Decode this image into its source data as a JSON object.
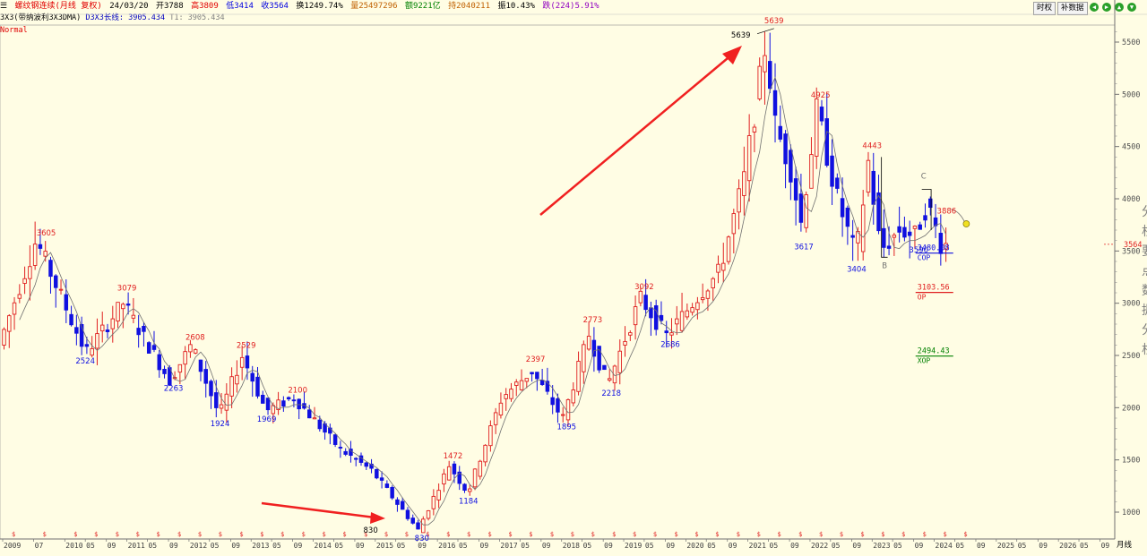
{
  "header": {
    "title": "螺纹钢连续(月线 复权)",
    "date": "24/03/20",
    "open": "开3788",
    "high": "高3809",
    "low": "低3414",
    "close": "收3564",
    "turnover": "换1249.74%",
    "volume": "量25497296",
    "amount": "额9221亿",
    "position": "持2040211",
    "amplitude": "振10.43%",
    "change": "跌(224)5.91%",
    "btn_time": "时权",
    "btn_data": "补数据",
    "icon_small1": "王",
    "icon_small2": "田"
  },
  "indicator": {
    "name": "3X3(带纳波利3X3DMA)",
    "d3x3": "D3X3长线: 3905.434",
    "t1": "T1: 3905.434",
    "mode": "Normal"
  },
  "colors": {
    "up": "#e02020",
    "down": "#1010e0",
    "ma": "#707070",
    "grid": "#cfcfcf"
  },
  "side_text": [
    "分",
    "析",
    "要",
    "点",
    "数",
    "据",
    "分",
    "析"
  ],
  "chart_data": {
    "type": "candlestick",
    "ylim": [
      800,
      5700
    ],
    "y_ticks": [
      1000,
      1500,
      2000,
      2500,
      3000,
      3500,
      4000,
      4500,
      5000,
      5500
    ],
    "current_price_label": "3564",
    "x_labels": [
      {
        "t": "2009",
        "x": 2009.0
      },
      {
        "t": "07",
        "x": 2009.5
      },
      {
        "t": "2010",
        "x": 2010.0
      },
      {
        "t": "05",
        "x": 2010.33
      },
      {
        "t": "09",
        "x": 2010.67
      },
      {
        "t": "2011",
        "x": 2011.0
      },
      {
        "t": "05",
        "x": 2011.33
      },
      {
        "t": "09",
        "x": 2011.67
      },
      {
        "t": "2012",
        "x": 2012.0
      },
      {
        "t": "05",
        "x": 2012.33
      },
      {
        "t": "09",
        "x": 2012.67
      },
      {
        "t": "2013",
        "x": 2013.0
      },
      {
        "t": "05",
        "x": 2013.33
      },
      {
        "t": "09",
        "x": 2013.67
      },
      {
        "t": "2014",
        "x": 2014.0
      },
      {
        "t": "05",
        "x": 2014.33
      },
      {
        "t": "09",
        "x": 2014.67
      },
      {
        "t": "2015",
        "x": 2015.0
      },
      {
        "t": "05",
        "x": 2015.33
      },
      {
        "t": "09",
        "x": 2015.67
      },
      {
        "t": "2016",
        "x": 2016.0
      },
      {
        "t": "05",
        "x": 2016.33
      },
      {
        "t": "09",
        "x": 2016.67
      },
      {
        "t": "2017",
        "x": 2017.0
      },
      {
        "t": "05",
        "x": 2017.33
      },
      {
        "t": "09",
        "x": 2017.67
      },
      {
        "t": "2018",
        "x": 2018.0
      },
      {
        "t": "05",
        "x": 2018.33
      },
      {
        "t": "09",
        "x": 2018.67
      },
      {
        "t": "2019",
        "x": 2019.0
      },
      {
        "t": "05",
        "x": 2019.33
      },
      {
        "t": "09",
        "x": 2019.67
      },
      {
        "t": "2020",
        "x": 2020.0
      },
      {
        "t": "05",
        "x": 2020.33
      },
      {
        "t": "09",
        "x": 2020.67
      },
      {
        "t": "2021",
        "x": 2021.0
      },
      {
        "t": "05",
        "x": 2021.33
      },
      {
        "t": "09",
        "x": 2021.67
      },
      {
        "t": "2022",
        "x": 2022.0
      },
      {
        "t": "05",
        "x": 2022.33
      },
      {
        "t": "09",
        "x": 2022.67
      },
      {
        "t": "2023",
        "x": 2023.0
      },
      {
        "t": "05",
        "x": 2023.33
      },
      {
        "t": "09",
        "x": 2023.67
      },
      {
        "t": "2024",
        "x": 2024.0
      },
      {
        "t": "05",
        "x": 2024.33
      },
      {
        "t": "09",
        "x": 2024.67
      },
      {
        "t": "2025",
        "x": 2025.0
      },
      {
        "t": "05",
        "x": 2025.33
      },
      {
        "t": "09",
        "x": 2025.67
      },
      {
        "t": "2026",
        "x": 2026.0
      },
      {
        "t": "05",
        "x": 2026.33
      },
      {
        "t": "09",
        "x": 2026.67
      }
    ],
    "period_label": "月线",
    "annotations": [
      {
        "t": "3605",
        "x": 2009.7,
        "y": 3605,
        "c": "r",
        "pos": "above"
      },
      {
        "t": "2524",
        "x": 2010.33,
        "y": 2524,
        "c": "b",
        "pos": "below"
      },
      {
        "t": "3079",
        "x": 2011.0,
        "y": 3079,
        "c": "r",
        "pos": "above"
      },
      {
        "t": "2263",
        "x": 2011.75,
        "y": 2263,
        "c": "b",
        "pos": "below"
      },
      {
        "t": "2608",
        "x": 2012.1,
        "y": 2608,
        "c": "r",
        "pos": "above"
      },
      {
        "t": "1924",
        "x": 2012.5,
        "y": 1924,
        "c": "b",
        "pos": "below"
      },
      {
        "t": "2529",
        "x": 2012.92,
        "y": 2529,
        "c": "r",
        "pos": "above"
      },
      {
        "t": "1969",
        "x": 2013.25,
        "y": 1969,
        "c": "b",
        "pos": "below"
      },
      {
        "t": "2100",
        "x": 2013.75,
        "y": 2100,
        "c": "r",
        "pos": "above"
      },
      {
        "t": "830",
        "x": 2015.1,
        "y": 830,
        "c": "k",
        "pos": "left"
      },
      {
        "t": "830",
        "x": 2015.75,
        "y": 830,
        "c": "b",
        "pos": "below"
      },
      {
        "t": "1472",
        "x": 2016.25,
        "y": 1472,
        "c": "r",
        "pos": "above"
      },
      {
        "t": "1184",
        "x": 2016.5,
        "y": 1184,
        "c": "b",
        "pos": "below"
      },
      {
        "t": "2397",
        "x": 2017.58,
        "y": 2397,
        "c": "r",
        "pos": "above"
      },
      {
        "t": "1895",
        "x": 2018.08,
        "y": 1895,
        "c": "b",
        "pos": "below"
      },
      {
        "t": "2773",
        "x": 2018.5,
        "y": 2773,
        "c": "r",
        "pos": "above"
      },
      {
        "t": "2218",
        "x": 2018.8,
        "y": 2218,
        "c": "b",
        "pos": "below"
      },
      {
        "t": "3092",
        "x": 2019.33,
        "y": 3092,
        "c": "r",
        "pos": "above"
      },
      {
        "t": "2686",
        "x": 2019.75,
        "y": 2686,
        "c": "b",
        "pos": "below"
      },
      {
        "t": "5639",
        "x": 2021.1,
        "y": 5570,
        "c": "k",
        "pos": "left"
      },
      {
        "t": "5639",
        "x": 2021.42,
        "y": 5639,
        "c": "r",
        "pos": "above"
      },
      {
        "t": "3617",
        "x": 2021.9,
        "y": 3617,
        "c": "b",
        "pos": "below"
      },
      {
        "t": "4925",
        "x": 2022.17,
        "y": 4925,
        "c": "r",
        "pos": "above"
      },
      {
        "t": "3404",
        "x": 2022.75,
        "y": 3404,
        "c": "b",
        "pos": "below"
      },
      {
        "t": "4443",
        "x": 2023.0,
        "y": 4443,
        "c": "r",
        "pos": "above"
      },
      {
        "t": "3590",
        "x": 2023.75,
        "y": 3590,
        "c": "b",
        "pos": "below"
      },
      {
        "t": "3886",
        "x": 2024.0,
        "y": 3886,
        "c": "r",
        "pos": "right"
      },
      {
        "t": "B",
        "x": 2023.2,
        "y": 3440,
        "c": "g",
        "pos": "below"
      },
      {
        "t": "C",
        "x": 2023.83,
        "y": 4150,
        "c": "g",
        "pos": "above"
      }
    ],
    "levels": [
      {
        "value": "3480.08",
        "label": "COP",
        "y": 3480,
        "color": "#1010e0"
      },
      {
        "value": "3103.56",
        "label": "OP",
        "y": 3103,
        "color": "#e02020"
      },
      {
        "value": "2494.43",
        "label": "XOP",
        "y": 2494,
        "color": "#008000"
      }
    ]
  }
}
